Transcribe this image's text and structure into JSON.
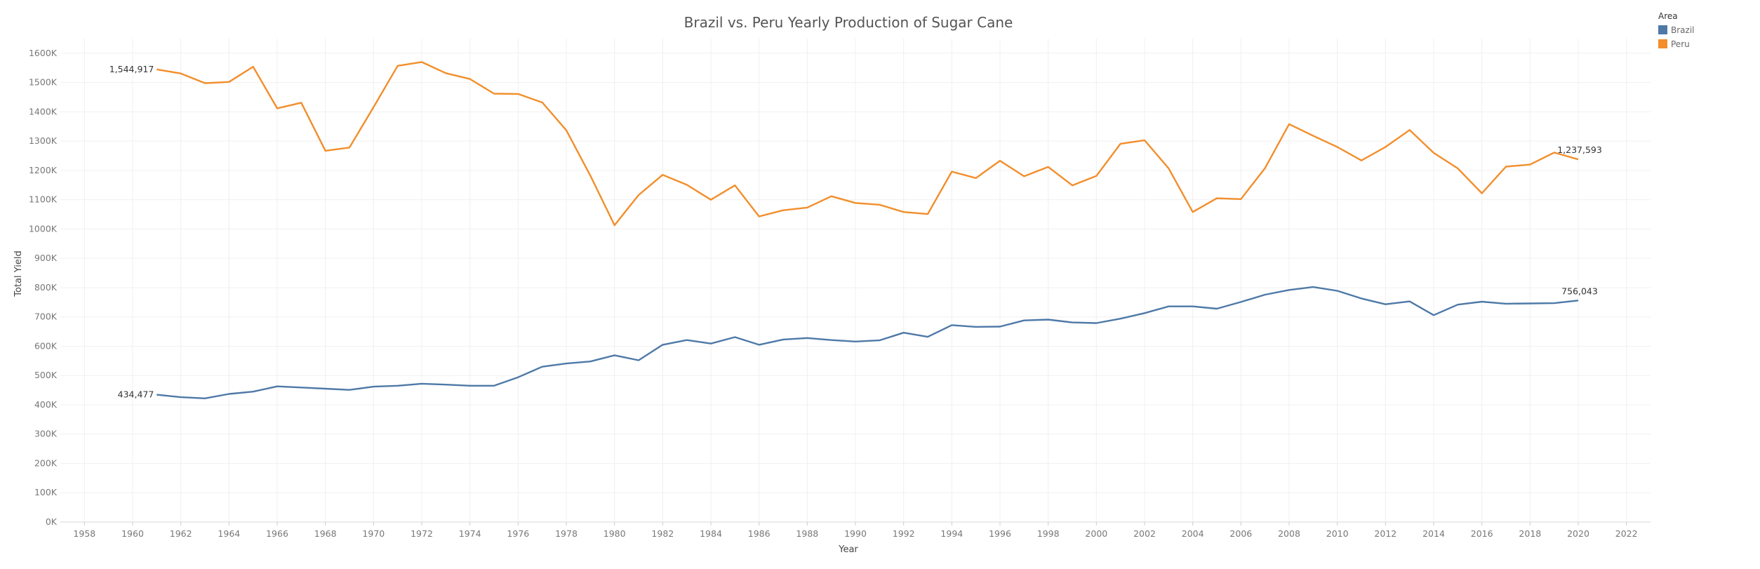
{
  "chart_data": {
    "type": "line",
    "title": "Brazil vs. Peru Yearly Production of Sugar Cane",
    "xlabel": "Year",
    "ylabel": "Total Yield",
    "xlim": [
      1957,
      2023
    ],
    "ylim": [
      0,
      1650000
    ],
    "x_ticks": [
      "1958",
      "1960",
      "1962",
      "1964",
      "1966",
      "1968",
      "1970",
      "1972",
      "1974",
      "1976",
      "1978",
      "1980",
      "1982",
      "1984",
      "1986",
      "1988",
      "1990",
      "1992",
      "1994",
      "1996",
      "1998",
      "2000",
      "2002",
      "2004",
      "2006",
      "2008",
      "2010",
      "2012",
      "2014",
      "2016",
      "2018",
      "2020",
      "2022"
    ],
    "y_ticks": [
      "0K",
      "100K",
      "200K",
      "300K",
      "400K",
      "500K",
      "600K",
      "700K",
      "800K",
      "900K",
      "1000K",
      "1100K",
      "1200K",
      "1300K",
      "1400K",
      "1500K",
      "1600K"
    ],
    "grid": true,
    "legend": {
      "title": "Area",
      "position": "top-right"
    },
    "x": [
      1961,
      1962,
      1963,
      1964,
      1965,
      1966,
      1967,
      1968,
      1969,
      1970,
      1971,
      1972,
      1973,
      1974,
      1975,
      1976,
      1977,
      1978,
      1979,
      1980,
      1981,
      1982,
      1983,
      1984,
      1985,
      1986,
      1987,
      1988,
      1989,
      1990,
      1991,
      1992,
      1993,
      1994,
      1995,
      1996,
      1997,
      1998,
      1999,
      2000,
      2001,
      2002,
      2003,
      2004,
      2005,
      2006,
      2007,
      2008,
      2009,
      2010,
      2011,
      2012,
      2013,
      2014,
      2015,
      2016,
      2017,
      2018,
      2019,
      2020
    ],
    "series": [
      {
        "name": "Brazil",
        "color": "#4e79a7",
        "values": [
          434477,
          426000,
          422000,
          437000,
          445000,
          463000,
          459000,
          455000,
          451000,
          462000,
          465000,
          472000,
          469000,
          465000,
          465000,
          494000,
          530000,
          541000,
          548000,
          569000,
          552000,
          605000,
          621000,
          609000,
          631000,
          605000,
          623000,
          628000,
          621000,
          616000,
          620000,
          646000,
          632000,
          672000,
          666000,
          667000,
          688000,
          691000,
          681000,
          679000,
          694000,
          713000,
          736000,
          736000,
          728000,
          751000,
          776000,
          792000,
          802000,
          789000,
          763000,
          743000,
          753000,
          706000,
          742000,
          752000,
          745000,
          746000,
          747000,
          756043
        ],
        "labels": [
          {
            "year": 1961,
            "text": "434,477"
          },
          {
            "year": 2020,
            "text": "756,043"
          }
        ]
      },
      {
        "name": "Peru",
        "color": "#f28e2b",
        "values": [
          1544917,
          1531000,
          1498000,
          1502000,
          1554000,
          1412000,
          1431000,
          1267000,
          1278000,
          1416000,
          1557000,
          1570000,
          1532000,
          1512000,
          1462000,
          1461000,
          1432000,
          1337000,
          1182000,
          1013000,
          1116000,
          1185000,
          1151000,
          1100000,
          1149000,
          1043000,
          1064000,
          1073000,
          1112000,
          1089000,
          1083000,
          1058000,
          1051000,
          1196000,
          1174000,
          1233000,
          1180000,
          1212000,
          1149000,
          1181000,
          1291000,
          1303000,
          1207000,
          1058000,
          1105000,
          1102000,
          1208000,
          1358000,
          1318000,
          1280000,
          1234000,
          1280000,
          1338000,
          1260000,
          1207000,
          1122000,
          1213000,
          1220000,
          1261000,
          1237593
        ],
        "labels": [
          {
            "year": 1961,
            "text": "1,544,917"
          },
          {
            "year": 2020,
            "text": "1,237,593"
          }
        ]
      }
    ]
  }
}
